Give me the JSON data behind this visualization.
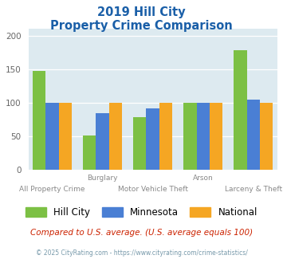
{
  "title_line1": "2019 Hill City",
  "title_line2": "Property Crime Comparison",
  "groups": [
    "All Property Crime",
    "Burglary",
    "Motor Vehicle Theft",
    "Arson",
    "Larceny & Theft"
  ],
  "hill_city": [
    147,
    51,
    78,
    100,
    178
  ],
  "minnesota": [
    100,
    84,
    91,
    100,
    104
  ],
  "national": [
    100,
    100,
    100,
    100,
    100
  ],
  "bar_colors": {
    "hill_city": "#7cc044",
    "minnesota": "#4a7fd4",
    "national": "#f5a623"
  },
  "ylim": [
    0,
    210
  ],
  "yticks": [
    0,
    50,
    100,
    150,
    200
  ],
  "background_color": "#ddeaf0",
  "title_color": "#1a5fa8",
  "legend_labels": [
    "Hill City",
    "Minnesota",
    "National"
  ],
  "footnote1": "Compared to U.S. average. (U.S. average equals 100)",
  "footnote2": "© 2025 CityRating.com - https://www.cityrating.com/crime-statistics/",
  "footnote1_color": "#cc2200",
  "footnote2_color": "#7799aa"
}
